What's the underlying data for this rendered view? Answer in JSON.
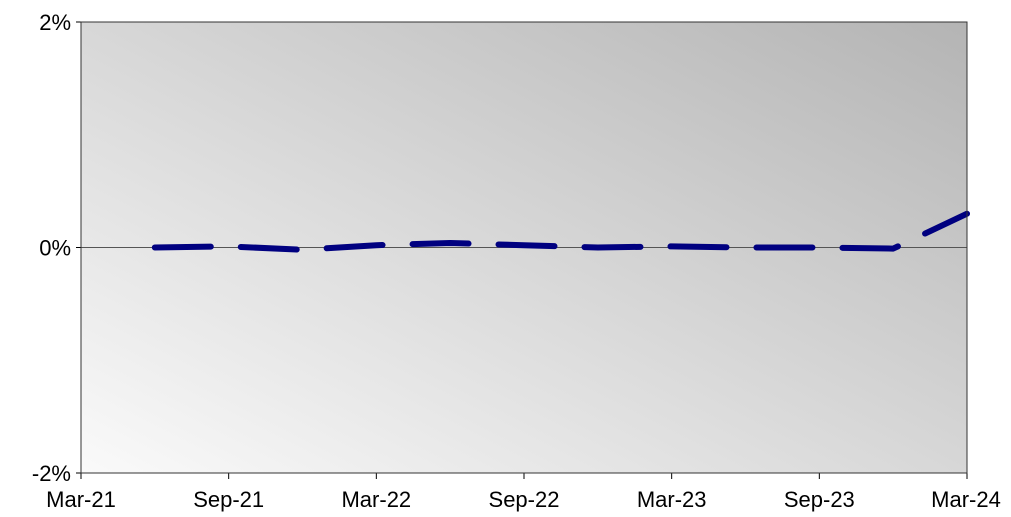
{
  "chart_data": {
    "type": "line",
    "title": "",
    "xlabel": "",
    "ylabel": "",
    "x_ticks": [
      "Mar-21",
      "Sep-21",
      "Mar-22",
      "Sep-22",
      "Mar-23",
      "Sep-23",
      "Mar-24"
    ],
    "y_ticks": [
      "2%",
      "0%",
      "-2%"
    ],
    "y_tick_values": [
      2,
      0,
      -2
    ],
    "ylim": [
      -2,
      2
    ],
    "xlim": [
      "2021-03",
      "2024-03"
    ],
    "grid": false,
    "legend": "none",
    "series": [
      {
        "style": "dashed",
        "color": "#000080",
        "points": [
          {
            "x": "2021-06",
            "y": 0.0
          },
          {
            "x": "2021-09",
            "y": 0.01
          },
          {
            "x": "2021-12",
            "y": -0.02
          },
          {
            "x": "2022-03",
            "y": 0.02
          },
          {
            "x": "2022-06",
            "y": 0.04
          },
          {
            "x": "2022-09",
            "y": 0.02
          },
          {
            "x": "2022-12",
            "y": 0.0
          },
          {
            "x": "2023-03",
            "y": 0.01
          },
          {
            "x": "2023-06",
            "y": 0.0
          },
          {
            "x": "2023-09",
            "y": 0.0
          },
          {
            "x": "2023-12",
            "y": -0.01
          },
          {
            "x": "2024-03",
            "y": 0.3
          }
        ]
      }
    ]
  },
  "colors": {
    "series_line": "#000080",
    "zero_line": "#555555",
    "plot_border": "#333333",
    "gradient_light": "#fafafa",
    "gradient_dark": "#b4b4b4"
  }
}
